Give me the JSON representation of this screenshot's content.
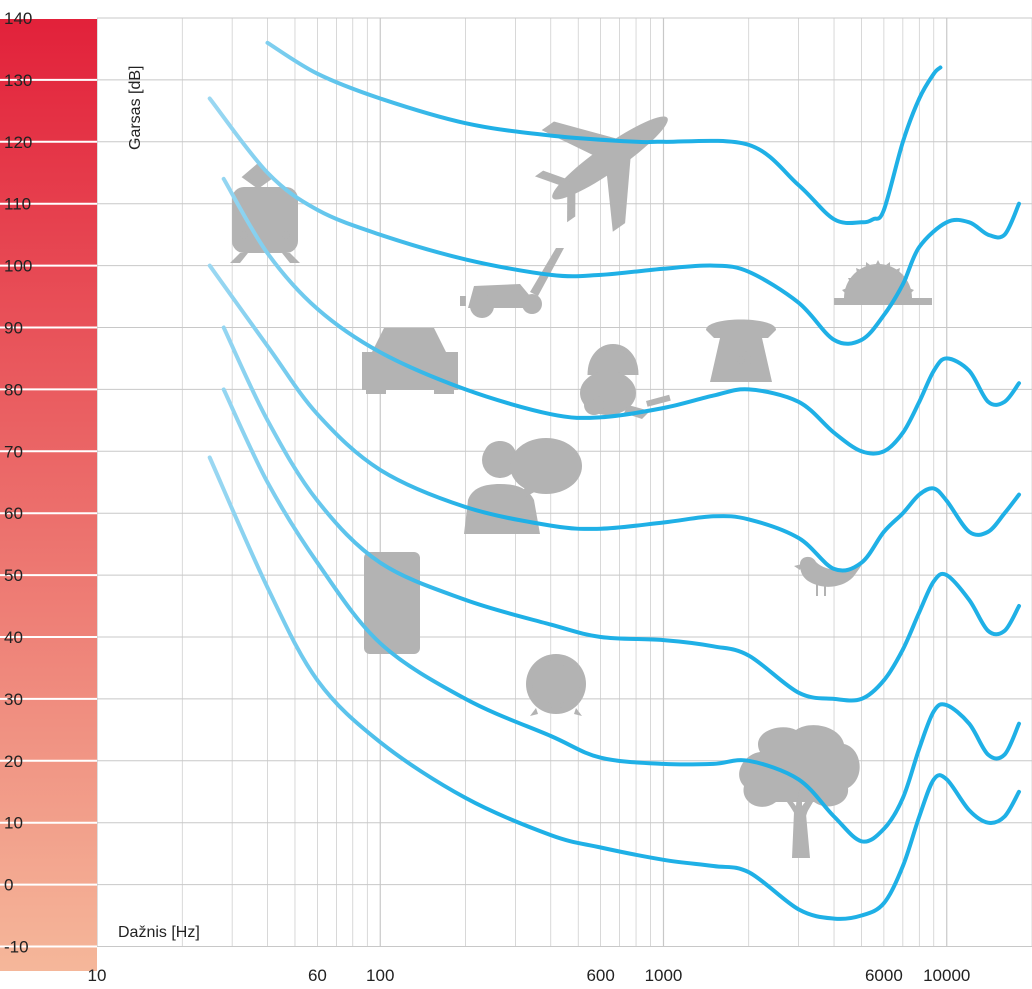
{
  "chart_data": {
    "type": "line",
    "title": "",
    "ylabel": "Garsas [dB]",
    "xlabel": "Dažnis [Hz]",
    "x_scale": "log",
    "xlim": [
      10,
      20000
    ],
    "ylim": [
      -10,
      140
    ],
    "y_ticks": [
      "140",
      "130",
      "120",
      "110",
      "100",
      "90",
      "80",
      "70",
      "60",
      "50",
      "40",
      "30",
      "20",
      "10",
      "0",
      "-10"
    ],
    "x_ticks": [
      "10",
      "60",
      "100",
      "600",
      "1000",
      "6000",
      "10000"
    ],
    "grid": true,
    "colors": {
      "curve": "#1fb0e6",
      "curve_faded": "#a9dcf3",
      "grid": "#c8c8c8",
      "icons": "#b3b3b3",
      "scale_top": "#e2213a",
      "scale_bottom": "#f5b79a"
    },
    "series": [
      {
        "x": [
          40,
          60,
          100,
          200,
          400,
          800,
          1000,
          2000,
          3000,
          4000,
          5000,
          5500,
          6000,
          7000,
          8000,
          9000,
          9500
        ],
        "values": [
          136,
          131,
          127,
          123,
          121,
          120,
          120,
          119.5,
          113,
          107.5,
          107,
          107.5,
          109,
          120,
          127,
          131,
          132
        ]
      },
      {
        "x": [
          25,
          40,
          60,
          100,
          200,
          400,
          600,
          1000,
          1500,
          2000,
          3000,
          4000,
          5000,
          6000,
          7000,
          8000,
          10000,
          12000,
          14000,
          16000,
          18000
        ],
        "values": [
          127,
          115,
          109,
          105,
          101,
          98.5,
          98.5,
          99.5,
          100,
          99,
          94,
          88,
          88,
          92,
          97,
          103,
          107,
          107,
          105,
          105,
          110
        ]
      },
      {
        "x": [
          28,
          40,
          60,
          100,
          200,
          400,
          600,
          1000,
          1500,
          2000,
          3000,
          4000,
          5000,
          6000,
          7000,
          8000,
          9000,
          10000,
          12000,
          14000,
          16000,
          18000
        ],
        "values": [
          114,
          102,
          93,
          86,
          80,
          76,
          75.5,
          77,
          79,
          80,
          78,
          73,
          70,
          70,
          73,
          78,
          83,
          85,
          83,
          78,
          78,
          81
        ]
      },
      {
        "x": [
          25,
          40,
          60,
          100,
          200,
          400,
          600,
          1000,
          1500,
          2000,
          3000,
          4000,
          5000,
          6000,
          7000,
          8000,
          9000,
          10000,
          12000,
          14000,
          16000,
          18000
        ],
        "values": [
          100,
          87,
          76,
          67,
          61,
          58,
          57.5,
          58.5,
          59.5,
          59,
          56,
          51,
          52,
          57,
          60,
          63,
          64,
          62,
          57,
          57,
          60,
          63
        ]
      },
      {
        "x": [
          28,
          40,
          60,
          100,
          200,
          400,
          600,
          1000,
          1500,
          2000,
          3000,
          4000,
          5000,
          6000,
          7000,
          8000,
          9000,
          10000,
          12000,
          14000,
          16000,
          18000
        ],
        "values": [
          90,
          75,
          62,
          52,
          46,
          42,
          40,
          39.5,
          38.5,
          37,
          31,
          30,
          30,
          33,
          38,
          44,
          49,
          50,
          46,
          41,
          41,
          45
        ]
      },
      {
        "x": [
          28,
          40,
          60,
          100,
          200,
          400,
          600,
          1000,
          1500,
          2000,
          3000,
          4000,
          5000,
          6000,
          7000,
          8000,
          9000,
          10000,
          12000,
          14000,
          16000,
          18000
        ],
        "values": [
          80,
          65,
          52,
          39,
          30,
          24,
          20.5,
          19.5,
          19.5,
          20,
          17,
          11,
          7,
          9,
          14,
          22,
          28,
          29,
          26,
          21,
          21,
          26
        ]
      },
      {
        "x": [
          25,
          40,
          60,
          100,
          200,
          400,
          600,
          1000,
          1500,
          2000,
          3000,
          4000,
          5000,
          6000,
          7000,
          8000,
          9000,
          10000,
          12000,
          14000,
          16000,
          18000
        ],
        "values": [
          69,
          48,
          33,
          23,
          14,
          8,
          6,
          4,
          3,
          2,
          -4,
          -5.5,
          -5,
          -3,
          3,
          11,
          17,
          17,
          12,
          10,
          11,
          15
        ]
      }
    ]
  },
  "icons": [
    "train-icon",
    "airplane-icon",
    "lawnmower-icon",
    "car-icon",
    "vacuum-cleaner-icon",
    "telephone-icon",
    "circular-saw-icon",
    "people-talking-icon",
    "bird-icon",
    "refrigerator-icon",
    "alarm-clock-icon",
    "tree-icon"
  ]
}
